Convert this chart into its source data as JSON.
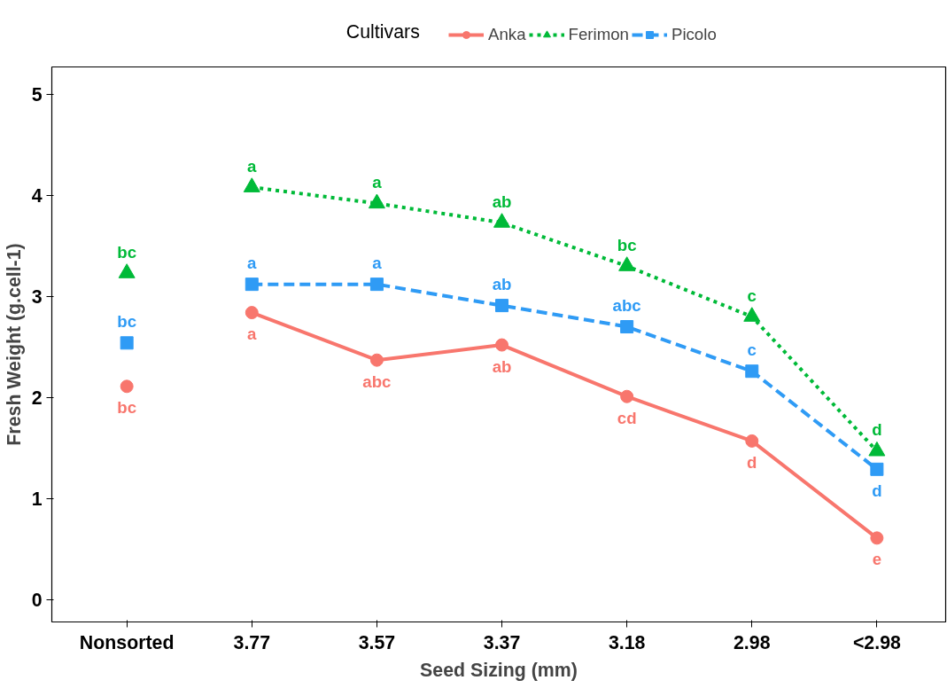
{
  "chart_data": {
    "type": "line",
    "xlabel": "Seed Sizing (mm)",
    "ylabel": "Fresh Weight (g.cell-1)",
    "legend_title": "Cultivars",
    "legend": "top",
    "categories": [
      "Nonsorted",
      "3.77",
      "3.57",
      "3.37",
      "3.18",
      "2.98",
      "<2.98"
    ],
    "ylim": [
      -0.22,
      5.27
    ],
    "yticks": [
      0,
      1,
      2,
      3,
      4,
      5
    ],
    "grid": false,
    "series": [
      {
        "name": "Anka",
        "color": "#f8766d",
        "marker": "circle",
        "line_style": "solid",
        "values": [
          null,
          2.84,
          2.37,
          2.52,
          2.01,
          1.57,
          0.61
        ],
        "value_labels": [
          null,
          "a",
          "abc",
          "ab",
          "cd",
          "d",
          "e"
        ]
      },
      {
        "name": "Ferimon",
        "color": "#00ba38",
        "marker": "triangle",
        "line_style": "dotted",
        "values": [
          null,
          4.08,
          3.92,
          3.73,
          3.3,
          2.8,
          1.47
        ],
        "value_labels": [
          null,
          "a",
          "a",
          "ab",
          "bc",
          "c",
          "d"
        ]
      },
      {
        "name": "Picolo",
        "color": "#2f9bf5",
        "marker": "square",
        "line_style": "dashed",
        "values": [
          null,
          3.12,
          3.12,
          2.91,
          2.7,
          2.26,
          1.29
        ],
        "value_labels": [
          null,
          "a",
          "a",
          "ab",
          "abc",
          "c",
          "d"
        ]
      },
      {
        "type": "scatter",
        "color": "#f8766d",
        "marker": "circle",
        "values": [
          2.11,
          null,
          null,
          null,
          null,
          null,
          null
        ],
        "value_labels": [
          "bc",
          null,
          null,
          null,
          null,
          null,
          null
        ]
      },
      {
        "type": "scatter",
        "color": "#00ba38",
        "marker": "triangle",
        "values": [
          3.23,
          null,
          null,
          null,
          null,
          null,
          null
        ],
        "value_labels": [
          "bc",
          null,
          null,
          null,
          null,
          null,
          null
        ]
      },
      {
        "type": "scatter",
        "color": "#2f9bf5",
        "marker": "square",
        "values": [
          2.54,
          null,
          null,
          null,
          null,
          null,
          null
        ],
        "value_labels": [
          "bc",
          null,
          null,
          null,
          null,
          null,
          null
        ]
      }
    ]
  }
}
